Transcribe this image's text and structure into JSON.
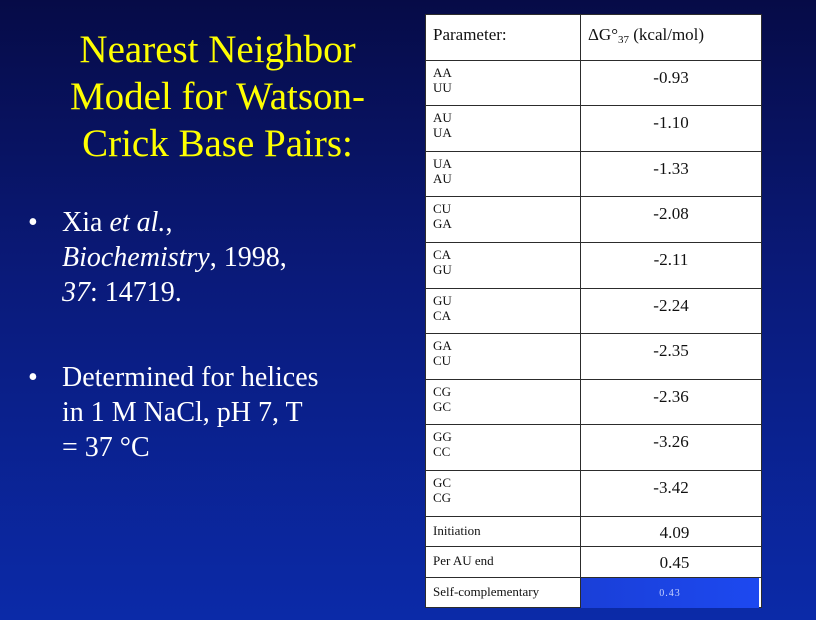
{
  "slide": {
    "title_lines": [
      "Nearest Neighbor",
      "Model for Watson-",
      "Crick Base Pairs:"
    ],
    "bullet1": {
      "authors": "Xia",
      "etal": "et al.",
      "journal": "Biochemistry",
      "year": ", 1998,",
      "volume": "37",
      "page": ": 14719."
    },
    "bullet2_lines": [
      "Determined for helices",
      "in 1 M NaCl, pH 7, T",
      "= 37 °C"
    ]
  },
  "table": {
    "header_param": "Parameter:",
    "header_value_prefix": "ΔG°",
    "header_value_sub": "37",
    "header_value_unit": " (kcal/mol)",
    "rows": [
      {
        "top": "AA",
        "bottom": "UU",
        "value": "-0.93"
      },
      {
        "top": "AU",
        "bottom": "UA",
        "value": "-1.10"
      },
      {
        "top": "UA",
        "bottom": "AU",
        "value": "-1.33"
      },
      {
        "top": "CU",
        "bottom": "GA",
        "value": "-2.08"
      },
      {
        "top": "CA",
        "bottom": "GU",
        "value": "-2.11"
      },
      {
        "top": "GU",
        "bottom": "CA",
        "value": "-2.24"
      },
      {
        "top": "GA",
        "bottom": "CU",
        "value": "-2.35"
      },
      {
        "top": "CG",
        "bottom": "GC",
        "value": "-2.36"
      },
      {
        "top": "GG",
        "bottom": "CC",
        "value": "-3.26"
      },
      {
        "top": "GC",
        "bottom": "CG",
        "value": "-3.42"
      }
    ],
    "initiation_label": "Initiation",
    "initiation_value": "4.09",
    "au_end_label": "Per AU end",
    "au_end_value": "0.45",
    "self_comp_label": "Self-complementary",
    "self_comp_value": "0.43"
  }
}
